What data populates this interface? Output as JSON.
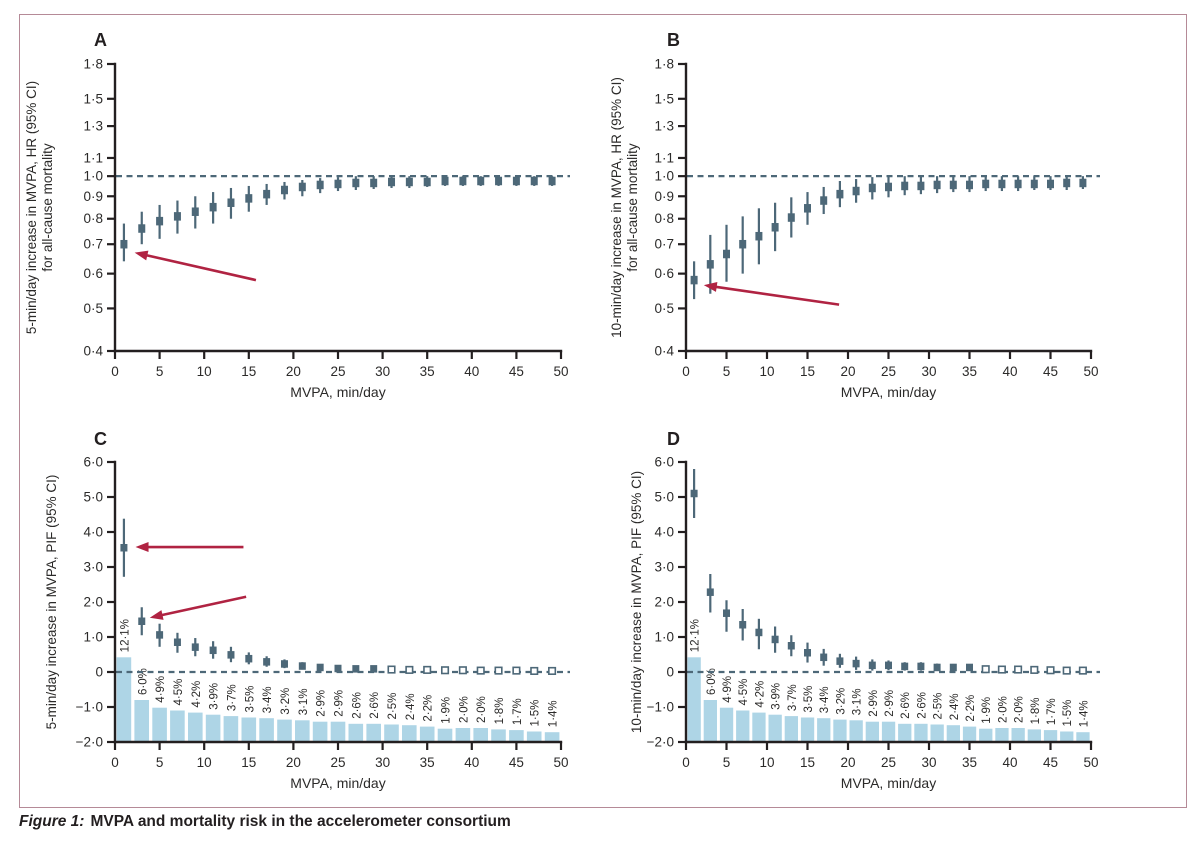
{
  "figure": {
    "caption_prefix": "Figure 1:",
    "caption_title": "MVPA and mortality risk in the accelerometer consortium"
  },
  "colors": {
    "border_pink": "#b58a97",
    "marker_slate": "#4d6878",
    "bar_blue": "#aed5e6",
    "arrow_red": "#b02342",
    "axis_black": "#231f20",
    "text_dark": "#2b2a29"
  },
  "chart_data": [
    {
      "panel": "A",
      "type": "scatter",
      "ylabel_lines": [
        "5-min/day increase in MVPA, HR (95% CI)",
        "for all-cause mortality"
      ],
      "xlabel": "MVPA, min/day",
      "yscale": "log",
      "ylim": [
        0.4,
        1.8
      ],
      "yticks": [
        1.8,
        1.5,
        1.3,
        1.1,
        1.0,
        0.9,
        0.8,
        0.7,
        0.6,
        0.5,
        0.4
      ],
      "ytick_labels": [
        "1·8",
        "1·5",
        "1·3",
        "1·1",
        "1·0",
        "0·9",
        "0·8",
        "0·7",
        "0·6",
        "0·5",
        "0·4"
      ],
      "xlim": [
        0,
        50
      ],
      "xticks": [
        0,
        5,
        10,
        15,
        20,
        25,
        30,
        35,
        40,
        45,
        50
      ],
      "xtick_labels": [
        "0",
        "5",
        "10",
        "15",
        "20",
        "25",
        "30",
        "35",
        "40",
        "45",
        "50"
      ],
      "reference_line": 1.0,
      "x": [
        1,
        3,
        5,
        7,
        9,
        11,
        13,
        15,
        17,
        19,
        21,
        23,
        25,
        27,
        29,
        31,
        33,
        35,
        37,
        39,
        41,
        43,
        45,
        47,
        49
      ],
      "estimate": [
        0.7,
        0.76,
        0.79,
        0.81,
        0.83,
        0.85,
        0.87,
        0.89,
        0.91,
        0.93,
        0.945,
        0.955,
        0.96,
        0.965,
        0.965,
        0.97,
        0.97,
        0.97,
        0.975,
        0.975,
        0.975,
        0.975,
        0.975,
        0.975,
        0.975
      ],
      "ci_low": [
        0.64,
        0.7,
        0.72,
        0.74,
        0.76,
        0.78,
        0.8,
        0.83,
        0.86,
        0.885,
        0.9,
        0.915,
        0.925,
        0.93,
        0.935,
        0.94,
        0.94,
        0.945,
        0.95,
        0.95,
        0.95,
        0.95,
        0.95,
        0.95,
        0.95
      ],
      "ci_high": [
        0.78,
        0.83,
        0.86,
        0.88,
        0.9,
        0.92,
        0.94,
        0.95,
        0.96,
        0.97,
        0.98,
        0.99,
        0.995,
        1.0,
        1.0,
        1.0,
        1.0,
        1.0,
        1.0,
        1.0,
        1.0,
        1.0,
        1.0,
        1.0,
        1.0
      ],
      "open_markers_from_x": null,
      "arrows": [
        {
          "from": [
            15.8,
            0.58
          ],
          "to": [
            2.2,
            0.67
          ]
        }
      ]
    },
    {
      "panel": "B",
      "type": "scatter",
      "ylabel_lines": [
        "10-min/day increase in MVPA, HR (95% CI)",
        "for all-cause mortality"
      ],
      "xlabel": "MVPA, min/day",
      "yscale": "log",
      "ylim": [
        0.4,
        1.8
      ],
      "yticks": [
        1.8,
        1.5,
        1.3,
        1.1,
        1.0,
        0.9,
        0.8,
        0.7,
        0.6,
        0.5,
        0.4
      ],
      "ytick_labels": [
        "1·8",
        "1·5",
        "1·3",
        "1·1",
        "1·0",
        "0·9",
        "0·8",
        "0·7",
        "0·6",
        "0·5",
        "0·4"
      ],
      "xlim": [
        0,
        50
      ],
      "xticks": [
        0,
        5,
        10,
        15,
        20,
        25,
        30,
        35,
        40,
        45,
        50
      ],
      "xtick_labels": [
        "0",
        "5",
        "10",
        "15",
        "20",
        "25",
        "30",
        "35",
        "40",
        "45",
        "50"
      ],
      "reference_line": 1.0,
      "x": [
        1,
        3,
        5,
        7,
        9,
        11,
        13,
        15,
        17,
        19,
        21,
        23,
        25,
        27,
        29,
        31,
        33,
        35,
        37,
        39,
        41,
        43,
        45,
        47,
        49
      ],
      "estimate": [
        0.58,
        0.63,
        0.665,
        0.7,
        0.73,
        0.765,
        0.805,
        0.845,
        0.88,
        0.91,
        0.925,
        0.94,
        0.945,
        0.95,
        0.95,
        0.955,
        0.955,
        0.955,
        0.96,
        0.96,
        0.96,
        0.96,
        0.96,
        0.965,
        0.965
      ],
      "ci_low": [
        0.525,
        0.54,
        0.575,
        0.6,
        0.63,
        0.675,
        0.725,
        0.775,
        0.82,
        0.85,
        0.87,
        0.885,
        0.895,
        0.905,
        0.91,
        0.915,
        0.92,
        0.92,
        0.925,
        0.925,
        0.925,
        0.93,
        0.93,
        0.93,
        0.935
      ],
      "ci_high": [
        0.64,
        0.735,
        0.775,
        0.81,
        0.845,
        0.87,
        0.895,
        0.92,
        0.945,
        0.975,
        0.985,
        0.995,
        1.0,
        1.0,
        1.0,
        1.0,
        1.0,
        1.0,
        1.0,
        1.0,
        1.0,
        1.0,
        1.0,
        1.0,
        1.0
      ],
      "open_markers_from_x": null,
      "arrows": [
        {
          "from": [
            18.9,
            0.51
          ],
          "to": [
            2.2,
            0.565
          ]
        }
      ]
    },
    {
      "panel": "C",
      "type": "bar+scatter",
      "ylabel_lines": [
        "5-min/day increase in MVPA, PIF (95% CI)"
      ],
      "xlabel": "MVPA, min/day",
      "yscale": "linear",
      "ylim": [
        -2.0,
        6.0
      ],
      "yticks": [
        6.0,
        5.0,
        4.0,
        3.0,
        2.0,
        1.0,
        0,
        -1.0,
        -2.0
      ],
      "ytick_labels": [
        "6·0",
        "5·0",
        "4·0",
        "3·0",
        "2·0",
        "1·0",
        "0",
        "−1·0",
        "−2·0"
      ],
      "xlim": [
        0,
        50
      ],
      "xticks": [
        0,
        5,
        10,
        15,
        20,
        25,
        30,
        35,
        40,
        45,
        50
      ],
      "xtick_labels": [
        "0",
        "5",
        "10",
        "15",
        "20",
        "25",
        "30",
        "35",
        "40",
        "45",
        "50"
      ],
      "reference_line": 0,
      "x": [
        1,
        3,
        5,
        7,
        9,
        11,
        13,
        15,
        17,
        19,
        21,
        23,
        25,
        27,
        29,
        31,
        33,
        35,
        37,
        39,
        41,
        43,
        45,
        47,
        49
      ],
      "estimate": [
        3.55,
        1.45,
        1.06,
        0.85,
        0.71,
        0.62,
        0.49,
        0.38,
        0.29,
        0.23,
        0.17,
        0.13,
        0.1,
        0.09,
        0.09,
        0.07,
        0.06,
        0.06,
        0.05,
        0.05,
        0.04,
        0.04,
        0.04,
        0.03,
        0.03
      ],
      "ci_low": [
        2.72,
        1.05,
        0.72,
        0.55,
        0.45,
        0.38,
        0.28,
        0.22,
        0.15,
        0.11,
        0.07,
        0.05,
        0.03,
        0.02,
        0.02,
        0.01,
        0.01,
        0.01,
        0.0,
        0.0,
        0.0,
        0.0,
        0.0,
        0.0,
        0.0
      ],
      "ci_high": [
        4.38,
        1.85,
        1.38,
        1.12,
        0.97,
        0.88,
        0.72,
        0.56,
        0.45,
        0.36,
        0.28,
        0.22,
        0.18,
        0.16,
        0.16,
        0.13,
        0.12,
        0.11,
        0.1,
        0.1,
        0.09,
        0.09,
        0.08,
        0.07,
        0.07
      ],
      "open_markers_from_x": 31,
      "bars": {
        "baseline": -2.0,
        "units_per_percent": 0.2,
        "percents": [
          12.1,
          6.0,
          4.9,
          4.5,
          4.2,
          3.9,
          3.7,
          3.5,
          3.4,
          3.2,
          3.1,
          2.9,
          2.9,
          2.6,
          2.6,
          2.5,
          2.4,
          2.2,
          1.9,
          2.0,
          2.0,
          1.8,
          1.7,
          1.5,
          1.4
        ],
        "percent_labels": [
          "12·1%",
          "6·0%",
          "4·9%",
          "4·5%",
          "4·2%",
          "3·9%",
          "3·7%",
          "3·5%",
          "3·4%",
          "3·2%",
          "3·1%",
          "2·9%",
          "2·9%",
          "2·6%",
          "2·6%",
          "2·5%",
          "2·4%",
          "2·2%",
          "1·9%",
          "2·0%",
          "2·0%",
          "1·8%",
          "1·7%",
          "1·5%",
          "1·4%"
        ]
      },
      "arrows": [
        {
          "from": [
            14.4,
            3.57
          ],
          "to": [
            2.3,
            3.57
          ]
        },
        {
          "from": [
            14.7,
            2.15
          ],
          "to": [
            3.9,
            1.55
          ]
        }
      ]
    },
    {
      "panel": "D",
      "type": "bar+scatter",
      "ylabel_lines": [
        "10-min/day increase in MVPA, PIF (95% CI)"
      ],
      "xlabel": "MVPA, min/day",
      "yscale": "linear",
      "ylim": [
        -2.0,
        6.0
      ],
      "yticks": [
        6.0,
        5.0,
        4.0,
        3.0,
        2.0,
        1.0,
        0,
        -1.0,
        -2.0
      ],
      "ytick_labels": [
        "6·0",
        "5·0",
        "4·0",
        "3·0",
        "2·0",
        "1·0",
        "0",
        "−1·0",
        "−2·0"
      ],
      "xlim": [
        0,
        50
      ],
      "xticks": [
        0,
        5,
        10,
        15,
        20,
        25,
        30,
        35,
        40,
        45,
        50
      ],
      "xtick_labels": [
        "0",
        "5",
        "10",
        "15",
        "20",
        "25",
        "30",
        "35",
        "40",
        "45",
        "50"
      ],
      "reference_line": 0,
      "x": [
        1,
        3,
        5,
        7,
        9,
        11,
        13,
        15,
        17,
        19,
        21,
        23,
        25,
        27,
        29,
        31,
        33,
        35,
        37,
        39,
        41,
        43,
        45,
        47,
        49
      ],
      "estimate": [
        5.1,
        2.28,
        1.68,
        1.35,
        1.13,
        0.93,
        0.75,
        0.55,
        0.42,
        0.31,
        0.24,
        0.19,
        0.19,
        0.16,
        0.16,
        0.13,
        0.13,
        0.13,
        0.08,
        0.07,
        0.07,
        0.06,
        0.05,
        0.04,
        0.04
      ],
      "ci_low": [
        4.4,
        1.7,
        1.15,
        0.9,
        0.65,
        0.55,
        0.45,
        0.27,
        0.18,
        0.12,
        0.06,
        0.04,
        0.05,
        0.04,
        0.04,
        0.03,
        0.03,
        0.03,
        0.0,
        0.0,
        0.0,
        0.0,
        0.0,
        0.0,
        0.0
      ],
      "ci_high": [
        5.8,
        2.8,
        2.05,
        1.8,
        1.52,
        1.3,
        1.05,
        0.84,
        0.66,
        0.52,
        0.44,
        0.36,
        0.33,
        0.28,
        0.28,
        0.24,
        0.23,
        0.22,
        0.17,
        0.15,
        0.15,
        0.13,
        0.12,
        0.1,
        0.1
      ],
      "open_markers_from_x": 37,
      "bars": {
        "baseline": -2.0,
        "units_per_percent": 0.2,
        "percents": [
          12.1,
          6.0,
          4.9,
          4.5,
          4.2,
          3.9,
          3.7,
          3.5,
          3.4,
          3.2,
          3.1,
          2.9,
          2.9,
          2.6,
          2.6,
          2.5,
          2.4,
          2.2,
          1.9,
          2.0,
          2.0,
          1.8,
          1.7,
          1.5,
          1.4
        ],
        "percent_labels": [
          "12·1%",
          "6·0%",
          "4·9%",
          "4·5%",
          "4·2%",
          "3·9%",
          "3·7%",
          "3·5%",
          "3·4%",
          "3·2%",
          "3·1%",
          "2·9%",
          "2·9%",
          "2·6%",
          "2·6%",
          "2·5%",
          "2·4%",
          "2·2%",
          "1·9%",
          "2·0%",
          "2·0%",
          "1·8%",
          "1·7%",
          "1·5%",
          "1·4%"
        ]
      },
      "arrows": []
    }
  ]
}
